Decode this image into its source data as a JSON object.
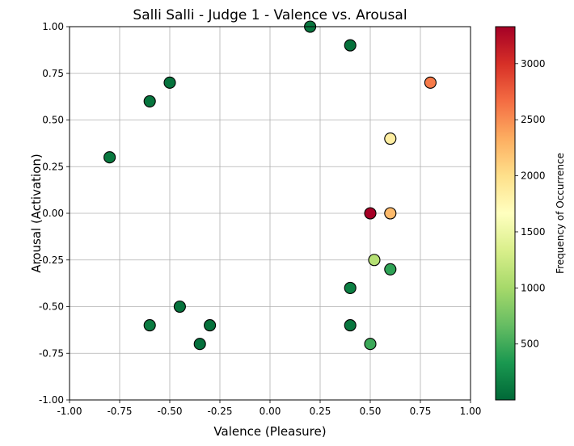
{
  "chart_data": {
    "type": "scatter",
    "title": "Salli Salli - Judge 1 - Valence vs. Arousal",
    "xlabel": "Valence (Pleasure)",
    "ylabel": "Arousal (Activation)",
    "xlim": [
      -1.0,
      1.0
    ],
    "ylim": [
      -1.0,
      1.0
    ],
    "xticks": [
      "-1.00",
      "-0.75",
      "-0.50",
      "-0.25",
      "0.00",
      "0.25",
      "0.50",
      "0.75",
      "1.00"
    ],
    "yticks": [
      "-1.00",
      "-0.75",
      "-0.50",
      "-0.25",
      "0.00",
      "0.25",
      "0.50",
      "0.75",
      "1.00"
    ],
    "grid": true,
    "colorbar": {
      "label": "Frequency of Occurrence",
      "colormap": "RdYlGn_r",
      "range": [
        1,
        3330
      ],
      "ticks": [
        500,
        1000,
        1500,
        2000,
        2500,
        3000
      ],
      "tick_labels": [
        "500",
        "1000",
        "1500",
        "2000",
        "2500",
        "3000"
      ]
    },
    "points": [
      {
        "x": 0.2,
        "y": 1.0,
        "frequency": 100
      },
      {
        "x": 0.4,
        "y": 0.9,
        "frequency": 60
      },
      {
        "x": 0.8,
        "y": 0.7,
        "frequency": 2600
      },
      {
        "x": -0.5,
        "y": 0.7,
        "frequency": 80
      },
      {
        "x": -0.6,
        "y": 0.6,
        "frequency": 90
      },
      {
        "x": -0.8,
        "y": 0.3,
        "frequency": 110
      },
      {
        "x": 0.6,
        "y": 0.4,
        "frequency": 1850
      },
      {
        "x": 0.5,
        "y": 0.0,
        "frequency": 3330
      },
      {
        "x": 0.6,
        "y": 0.0,
        "frequency": 2250
      },
      {
        "x": 0.52,
        "y": -0.25,
        "frequency": 1100
      },
      {
        "x": 0.6,
        "y": -0.3,
        "frequency": 420
      },
      {
        "x": 0.4,
        "y": -0.4,
        "frequency": 160
      },
      {
        "x": -0.45,
        "y": -0.5,
        "frequency": 70
      },
      {
        "x": -0.6,
        "y": -0.6,
        "frequency": 130
      },
      {
        "x": -0.3,
        "y": -0.6,
        "frequency": 60
      },
      {
        "x": 0.4,
        "y": -0.6,
        "frequency": 100
      },
      {
        "x": -0.35,
        "y": -0.7,
        "frequency": 50
      },
      {
        "x": 0.5,
        "y": -0.7,
        "frequency": 480
      }
    ]
  }
}
